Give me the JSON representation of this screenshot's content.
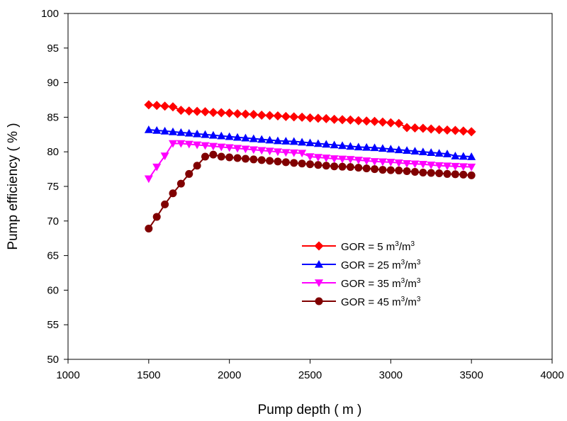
{
  "chart_data": {
    "type": "line",
    "xlabel": "Pump depth ( m )",
    "ylabel": "Pump efficiency ( % )",
    "xlim": [
      1000,
      4000
    ],
    "ylim": [
      50,
      100
    ],
    "x_ticks": [
      1000,
      1500,
      2000,
      2500,
      3000,
      3500,
      4000
    ],
    "y_ticks": [
      50,
      55,
      60,
      65,
      70,
      75,
      80,
      85,
      90,
      95,
      100
    ],
    "grid": false,
    "legend_position": "lower-right",
    "x": [
      1500,
      1550,
      1600,
      1650,
      1700,
      1750,
      1800,
      1850,
      1900,
      1950,
      2000,
      2050,
      2100,
      2150,
      2200,
      2250,
      2300,
      2350,
      2400,
      2450,
      2500,
      2550,
      2600,
      2650,
      2700,
      2750,
      2800,
      2850,
      2900,
      2950,
      3000,
      3050,
      3100,
      3150,
      3200,
      3250,
      3300,
      3350,
      3400,
      3450,
      3500
    ],
    "series": [
      {
        "name": "GOR = 5 m3/m3",
        "legend_base": "GOR = 5 m",
        "legend_sup1": "3",
        "legend_mid": "/m",
        "legend_sup2": "3",
        "color": "#ff0000",
        "marker": "diamond",
        "values": [
          86.8,
          86.7,
          86.6,
          86.5,
          86.0,
          85.9,
          85.85,
          85.8,
          85.7,
          85.65,
          85.6,
          85.5,
          85.45,
          85.4,
          85.3,
          85.25,
          85.2,
          85.1,
          85.05,
          85.0,
          84.9,
          84.85,
          84.8,
          84.7,
          84.65,
          84.6,
          84.5,
          84.45,
          84.4,
          84.3,
          84.2,
          84.1,
          83.5,
          83.45,
          83.4,
          83.3,
          83.2,
          83.15,
          83.1,
          83.0,
          82.9
        ]
      },
      {
        "name": "GOR = 25 m3/m3",
        "legend_base": "GOR = 25 m",
        "legend_sup1": "3",
        "legend_mid": "/m",
        "legend_sup2": "3",
        "color": "#0000ff",
        "marker": "triangle-up",
        "values": [
          83.2,
          83.1,
          83.0,
          82.9,
          82.8,
          82.7,
          82.6,
          82.5,
          82.4,
          82.3,
          82.2,
          82.1,
          82.0,
          81.9,
          81.8,
          81.7,
          81.6,
          81.55,
          81.5,
          81.4,
          81.3,
          81.2,
          81.1,
          81.0,
          80.9,
          80.8,
          80.7,
          80.65,
          80.6,
          80.5,
          80.4,
          80.3,
          80.2,
          80.1,
          80.0,
          79.9,
          79.8,
          79.7,
          79.4,
          79.35,
          79.3
        ]
      },
      {
        "name": "GOR = 35 m3/m3",
        "legend_base": "GOR = 35 m",
        "legend_sup1": "3",
        "legend_mid": "/m",
        "legend_sup2": "3",
        "color": "#ff00ff",
        "marker": "triangle-down",
        "values": [
          76.1,
          77.8,
          79.4,
          81.2,
          81.2,
          81.1,
          81.0,
          80.9,
          80.8,
          80.7,
          80.6,
          80.5,
          80.4,
          80.3,
          80.2,
          80.1,
          80.0,
          79.9,
          79.85,
          79.8,
          79.3,
          79.2,
          79.1,
          79.0,
          78.95,
          78.9,
          78.8,
          78.7,
          78.6,
          78.55,
          78.5,
          78.4,
          78.3,
          78.25,
          78.2,
          78.1,
          78.0,
          77.95,
          77.9,
          77.85,
          77.8
        ]
      },
      {
        "name": "GOR = 45 m3/m3",
        "legend_base": "GOR = 45 m",
        "legend_sup1": "3",
        "legend_mid": "/m",
        "legend_sup2": "3",
        "color": "#800000",
        "marker": "circle",
        "values": [
          68.9,
          70.6,
          72.4,
          74.0,
          75.4,
          76.8,
          78.0,
          79.3,
          79.6,
          79.3,
          79.2,
          79.1,
          79.0,
          78.9,
          78.8,
          78.7,
          78.6,
          78.5,
          78.4,
          78.3,
          78.2,
          78.1,
          78.0,
          77.9,
          77.85,
          77.8,
          77.7,
          77.6,
          77.5,
          77.4,
          77.35,
          77.3,
          77.2,
          77.1,
          77.0,
          76.95,
          76.9,
          76.8,
          76.75,
          76.7,
          76.6
        ]
      }
    ]
  }
}
